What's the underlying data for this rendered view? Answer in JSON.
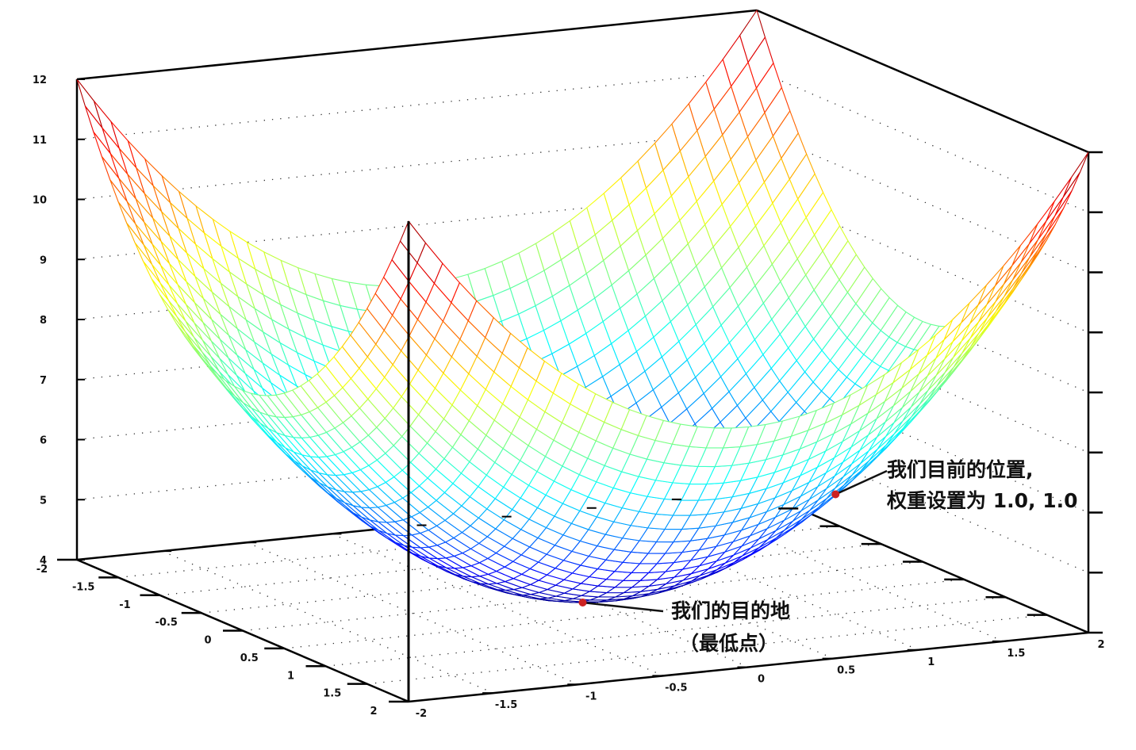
{
  "chart_data": {
    "type": "surface",
    "title": "",
    "x_range": [
      -2,
      2
    ],
    "y_range": [
      -2,
      2
    ],
    "z_range": [
      4,
      12
    ],
    "grid_step": 0.1,
    "surface": {
      "shape": "paraboloid",
      "center": [
        0,
        0
      ],
      "min_z": 4,
      "curvature": 1,
      "corner_z": 12
    },
    "x_ticks": [
      "-2",
      "-1.5",
      "-1",
      "-0.5",
      "0",
      "0.5",
      "1",
      "1.5",
      "2"
    ],
    "y_ticks": [
      "-2",
      "-1.5",
      "-1",
      "-0.5",
      "0",
      "0.5",
      "1",
      "1.5",
      "2"
    ],
    "z_ticks": [
      "4",
      "5",
      "6",
      "7",
      "8",
      "9",
      "10",
      "11",
      "12"
    ],
    "palette": "jet",
    "grid": true,
    "annotations": [
      {
        "point": [
          1.0,
          1.0,
          6.0
        ],
        "lines": [
          "我们目前的位置,",
          "权重设置为 1.0, 1.0"
        ],
        "marker_color": "#cc2222"
      },
      {
        "point": [
          0.0,
          0.0,
          4.0
        ],
        "lines": [
          "我们的目的地",
          "（最低点）"
        ],
        "marker_color": "#cc2222"
      }
    ]
  }
}
